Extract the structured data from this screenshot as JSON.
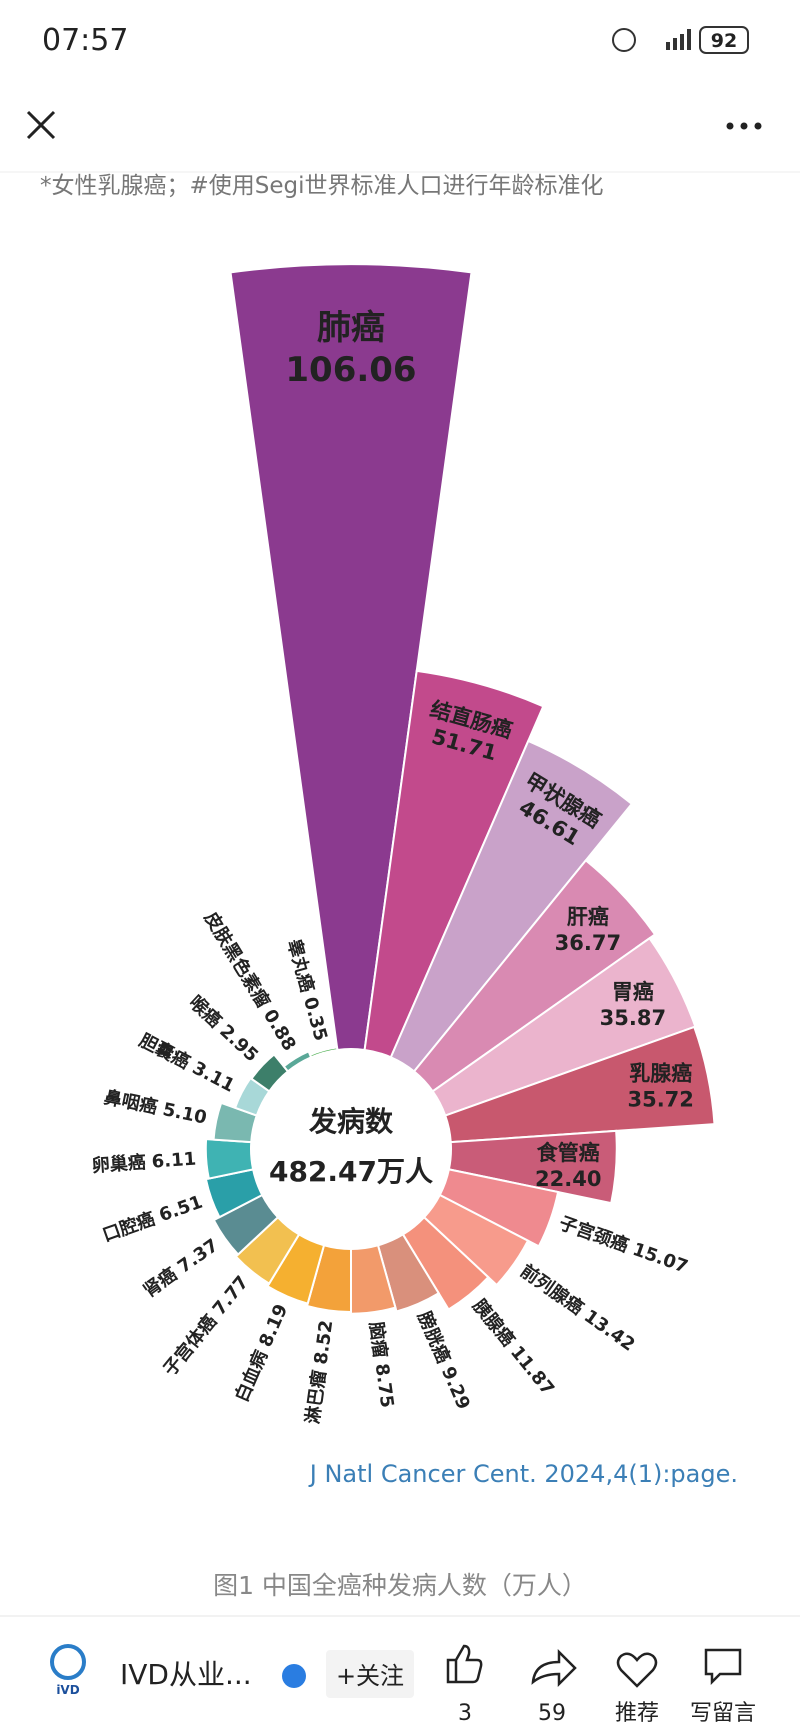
{
  "status_bar": {
    "time": "07:57",
    "battery": "92"
  },
  "note": "*女性乳腺癌；#使用Segi世界标准人口进行年龄标准化",
  "chart_data": {
    "type": "rose",
    "categories": [
      "肺癌",
      "结直肠癌",
      "甲状腺癌",
      "肝癌",
      "胃癌",
      "乳腺癌",
      "食管癌",
      "子宫颈癌",
      "前列腺癌",
      "胰腺癌",
      "膀胱癌",
      "脑瘤",
      "淋巴瘤",
      "白血病",
      "子宫体癌",
      "肾癌",
      "口腔癌",
      "卵巢癌",
      "鼻咽癌",
      "胆囊癌",
      "喉癌",
      "皮肤黑色素瘤",
      "睾丸癌"
    ],
    "values": [
      106.06,
      51.71,
      46.61,
      36.77,
      35.87,
      35.72,
      22.4,
      15.07,
      13.42,
      11.87,
      9.29,
      8.75,
      8.52,
      8.19,
      7.77,
      7.37,
      6.51,
      6.11,
      5.1,
      3.11,
      2.95,
      0.88,
      0.35
    ],
    "value_labels": [
      "106.06",
      "51.71",
      "46.61",
      "36.77",
      "35.87",
      "35.72",
      "22.40",
      "15.07",
      "13.42",
      "11.87",
      "9.29",
      "8.75",
      "8.52",
      "8.19",
      "7.77",
      "7.37",
      "6.51",
      "6.11",
      "5.10",
      "3.11",
      "2.95",
      "0.88",
      "0.35"
    ],
    "colors": [
      "#8b3a8f",
      "#c24a8c",
      "#c9a2c9",
      "#d98ab2",
      "#ebb4cd",
      "#c8586e",
      "#c95c78",
      "#ef8a8f",
      "#f79b8c",
      "#f4917c",
      "#d9907c",
      "#f29a6a",
      "#f3a23a",
      "#f5b030",
      "#f2c050",
      "#5a8c92",
      "#2a9fa8",
      "#3fb3b3",
      "#7ab8b0",
      "#a8d8d8",
      "#3d7f6a",
      "#5aa898",
      "#4caf50"
    ],
    "center_title": "发病数",
    "center_text": "482.47万人"
  },
  "source": "J Natl Cancer Cent. 2024,4(1):page.",
  "figure_caption": "图1 中国全癌种发病人数（万人）",
  "footer": {
    "logo": "iVD",
    "account": "IVD从业...",
    "follow": "+关注",
    "likes": "3",
    "shares": "59",
    "recommend": "推荐",
    "comment": "写留言"
  }
}
